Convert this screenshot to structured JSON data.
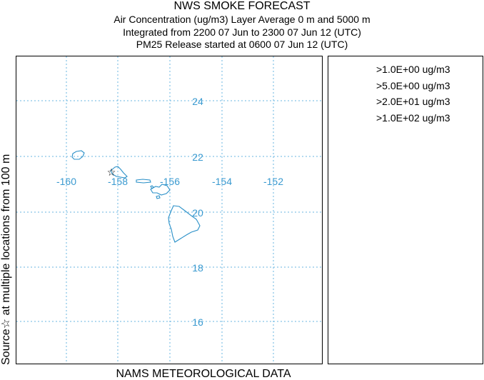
{
  "header": {
    "title": "NWS SMOKE FORECAST",
    "line1": "Air Concentration (ug/m3) Layer Average    0 m and  5000 m",
    "line2": "Integrated from 2200 07 Jun to 2300 07 Jun 12 (UTC)",
    "line3": "PM25 Release started at 0600 07 Jun 12 (UTC)"
  },
  "map": {
    "longitude_labels": [
      "-160",
      "-158",
      "-156",
      "-154",
      "-152"
    ],
    "latitude_labels": [
      "24",
      "22",
      "20",
      "18",
      "16"
    ],
    "grid_color": "#6ab4e0",
    "label_color": "#3a9ad0",
    "coast_color": "#2a90c8",
    "source_marker": "☆"
  },
  "legend": {
    "items": [
      ">1.0E+00 ug/m3",
      ">5.0E+00 ug/m3",
      ">2.0E+01 ug/m3",
      ">1.0E+02 ug/m3"
    ]
  },
  "side_label": "Source☆ at multiple locations     from   100 m",
  "footer": "NAMS METEOROLOGICAL DATA"
}
